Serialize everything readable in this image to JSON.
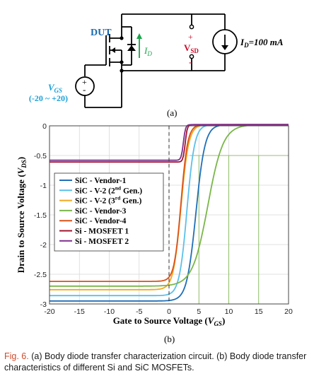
{
  "circuit": {
    "dut_label": "DUT",
    "id_label": "I",
    "id_sub": "D",
    "vsd_label": "V",
    "vsd_sub": "SD",
    "plus": "+",
    "minus": "-",
    "source_value": "I",
    "source_sub": "D",
    "source_eq": "=100 mA",
    "vgs_label": "V",
    "vgs_sub": "GS",
    "vgs_range": "(-20 ~ +20)",
    "caption_a": "(a)"
  },
  "chart_data": {
    "type": "line",
    "xlabel_main": "Gate to Source Voltage (",
    "xlabel_var": "V",
    "xlabel_sub": "GS",
    "xlabel_end": ")",
    "ylabel_main": "Drain to Source Voltage (",
    "ylabel_var": "V",
    "ylabel_sub": "DS",
    "ylabel_end": ")",
    "caption_b": "(b)",
    "xlim": [
      -20,
      20
    ],
    "ylim": [
      -3,
      0
    ],
    "xticks": [
      -20,
      -15,
      -10,
      -5,
      0,
      5,
      10,
      15,
      20
    ],
    "yticks": [
      0,
      -0.5,
      -1,
      -1.5,
      -2,
      -2.5,
      -3
    ],
    "xtick_labels": [
      "-20",
      "-15",
      "-10",
      "-5",
      "0",
      "5",
      "10",
      "15",
      "20"
    ],
    "ytick_labels": [
      "0",
      "-0.5",
      "-1",
      "-1.5",
      "-2",
      "-2.5",
      "-3"
    ],
    "legend_position": "left-middle",
    "series": [
      {
        "name": "SiC - Vendor-1",
        "color": "#1f6fb8",
        "low": -2.97,
        "x0": 4.5,
        "w": 1.9
      },
      {
        "name": "SiC - V-2 (2nd Gen.)",
        "name_main": "SiC - V-2 (2",
        "name_sup": "nd",
        "name_end": " Gen.)",
        "color": "#5bc0ea",
        "low": -2.88,
        "x0": 3.0,
        "w": 1.6
      },
      {
        "name": "SiC - V-2 (3rd Gen.)",
        "name_main": "SiC - V-2 (3",
        "name_sup": "rd",
        "name_end": " Gen.)",
        "color": "#f2a81e",
        "low": -2.78,
        "x0": 2.0,
        "w": 1.6
      },
      {
        "name": "SiC - Vendor-3",
        "color": "#7ab648",
        "low": -2.72,
        "x0": 6.5,
        "w": 3.2
      },
      {
        "name": "SiC - Vendor-4",
        "color": "#d95319",
        "low": -2.64,
        "x0": 2.0,
        "w": 1.4
      },
      {
        "name": "Si - MOSFET 1",
        "color": "#a2142f",
        "low": -0.63,
        "x0": 2.7,
        "w": 0.45
      },
      {
        "name": "Si - MOSFET 2",
        "color": "#7e2f8e",
        "low": -0.6,
        "x0": 2.4,
        "w": 0.45
      }
    ]
  },
  "caption": {
    "fig": "Fig. 6.",
    "text": "   (a) Body diode transfer characterization circuit. (b) Body diode transfer characteristics of different Si and SiC MOSFETs."
  }
}
